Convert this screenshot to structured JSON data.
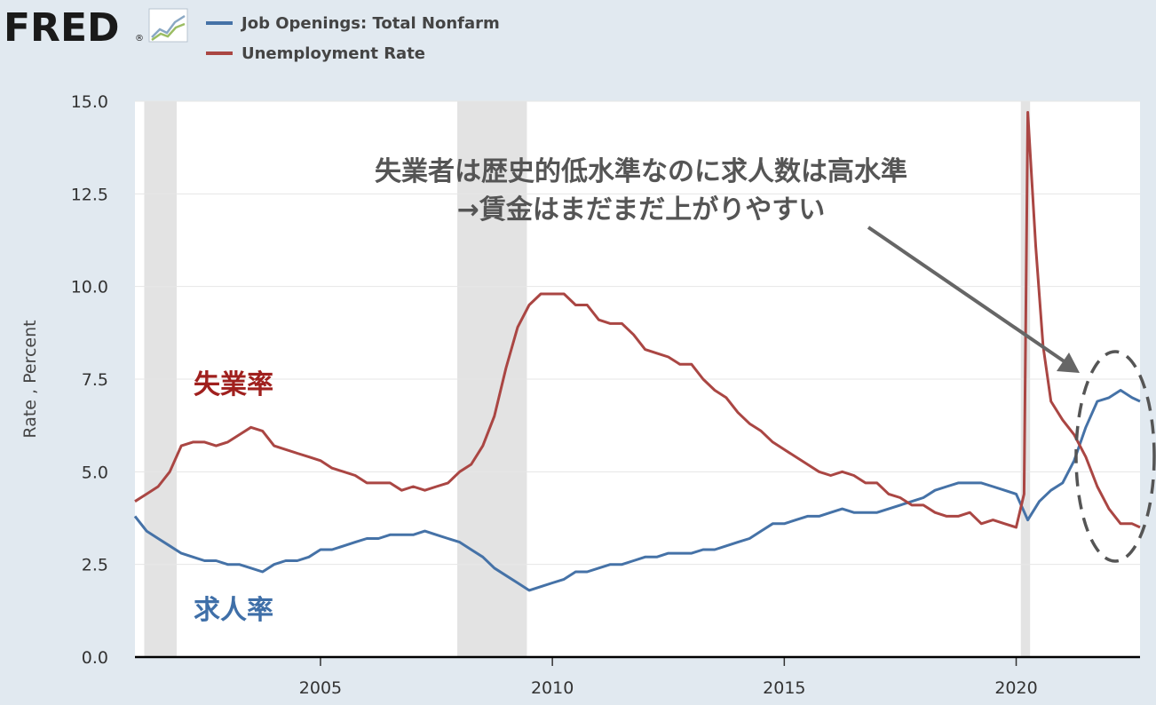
{
  "logo": {
    "text": "FRED",
    "reg": "®",
    "icon": "fred-graph-icon"
  },
  "chart_data": {
    "type": "line",
    "ylabel": "Rate , Percent",
    "ylim": [
      0,
      15
    ],
    "xlim": [
      2001.0,
      2022.67
    ],
    "yticks": [
      "0.0",
      "2.5",
      "5.0",
      "7.5",
      "10.0",
      "12.5",
      "15.0"
    ],
    "xticks": [
      "2005",
      "2010",
      "2015",
      "2020"
    ],
    "grid": true,
    "legend_position": "top-left",
    "recessions": [
      [
        2001.2,
        2001.9
      ],
      [
        2007.95,
        2009.45
      ],
      [
        2020.1,
        2020.3
      ]
    ],
    "series": [
      {
        "name": "Job Openings: Total Nonfarm",
        "color": "#4572a7",
        "points": [
          [
            2001.0,
            3.8
          ],
          [
            2001.25,
            3.4
          ],
          [
            2001.5,
            3.2
          ],
          [
            2001.75,
            3.0
          ],
          [
            2002.0,
            2.8
          ],
          [
            2002.25,
            2.7
          ],
          [
            2002.5,
            2.6
          ],
          [
            2002.75,
            2.6
          ],
          [
            2003.0,
            2.5
          ],
          [
            2003.25,
            2.5
          ],
          [
            2003.5,
            2.4
          ],
          [
            2003.75,
            2.3
          ],
          [
            2004.0,
            2.5
          ],
          [
            2004.25,
            2.6
          ],
          [
            2004.5,
            2.6
          ],
          [
            2004.75,
            2.7
          ],
          [
            2005.0,
            2.9
          ],
          [
            2005.25,
            2.9
          ],
          [
            2005.5,
            3.0
          ],
          [
            2005.75,
            3.1
          ],
          [
            2006.0,
            3.2
          ],
          [
            2006.25,
            3.2
          ],
          [
            2006.5,
            3.3
          ],
          [
            2006.75,
            3.3
          ],
          [
            2007.0,
            3.3
          ],
          [
            2007.25,
            3.4
          ],
          [
            2007.5,
            3.3
          ],
          [
            2007.75,
            3.2
          ],
          [
            2008.0,
            3.1
          ],
          [
            2008.25,
            2.9
          ],
          [
            2008.5,
            2.7
          ],
          [
            2008.75,
            2.4
          ],
          [
            2009.0,
            2.2
          ],
          [
            2009.25,
            2.0
          ],
          [
            2009.5,
            1.8
          ],
          [
            2009.75,
            1.9
          ],
          [
            2010.0,
            2.0
          ],
          [
            2010.25,
            2.1
          ],
          [
            2010.5,
            2.3
          ],
          [
            2010.75,
            2.3
          ],
          [
            2011.0,
            2.4
          ],
          [
            2011.25,
            2.5
          ],
          [
            2011.5,
            2.5
          ],
          [
            2011.75,
            2.6
          ],
          [
            2012.0,
            2.7
          ],
          [
            2012.25,
            2.7
          ],
          [
            2012.5,
            2.8
          ],
          [
            2012.75,
            2.8
          ],
          [
            2013.0,
            2.8
          ],
          [
            2013.25,
            2.9
          ],
          [
            2013.5,
            2.9
          ],
          [
            2013.75,
            3.0
          ],
          [
            2014.0,
            3.1
          ],
          [
            2014.25,
            3.2
          ],
          [
            2014.5,
            3.4
          ],
          [
            2014.75,
            3.6
          ],
          [
            2015.0,
            3.6
          ],
          [
            2015.25,
            3.7
          ],
          [
            2015.5,
            3.8
          ],
          [
            2015.75,
            3.8
          ],
          [
            2016.0,
            3.9
          ],
          [
            2016.25,
            4.0
          ],
          [
            2016.5,
            3.9
          ],
          [
            2016.75,
            3.9
          ],
          [
            2017.0,
            3.9
          ],
          [
            2017.25,
            4.0
          ],
          [
            2017.5,
            4.1
          ],
          [
            2017.75,
            4.2
          ],
          [
            2018.0,
            4.3
          ],
          [
            2018.25,
            4.5
          ],
          [
            2018.5,
            4.6
          ],
          [
            2018.75,
            4.7
          ],
          [
            2019.0,
            4.7
          ],
          [
            2019.25,
            4.7
          ],
          [
            2019.5,
            4.6
          ],
          [
            2019.75,
            4.5
          ],
          [
            2020.0,
            4.4
          ],
          [
            2020.25,
            3.7
          ],
          [
            2020.5,
            4.2
          ],
          [
            2020.75,
            4.5
          ],
          [
            2021.0,
            4.7
          ],
          [
            2021.25,
            5.3
          ],
          [
            2021.5,
            6.2
          ],
          [
            2021.75,
            6.9
          ],
          [
            2022.0,
            7.0
          ],
          [
            2022.25,
            7.2
          ],
          [
            2022.5,
            7.0
          ],
          [
            2022.67,
            6.9
          ]
        ]
      },
      {
        "name": "Unemployment Rate",
        "color": "#aa4643",
        "points": [
          [
            2001.0,
            4.2
          ],
          [
            2001.25,
            4.4
          ],
          [
            2001.5,
            4.6
          ],
          [
            2001.75,
            5.0
          ],
          [
            2002.0,
            5.7
          ],
          [
            2002.25,
            5.8
          ],
          [
            2002.5,
            5.8
          ],
          [
            2002.75,
            5.7
          ],
          [
            2003.0,
            5.8
          ],
          [
            2003.25,
            6.0
          ],
          [
            2003.5,
            6.2
          ],
          [
            2003.75,
            6.1
          ],
          [
            2004.0,
            5.7
          ],
          [
            2004.25,
            5.6
          ],
          [
            2004.5,
            5.5
          ],
          [
            2004.75,
            5.4
          ],
          [
            2005.0,
            5.3
          ],
          [
            2005.25,
            5.1
          ],
          [
            2005.5,
            5.0
          ],
          [
            2005.75,
            4.9
          ],
          [
            2006.0,
            4.7
          ],
          [
            2006.25,
            4.7
          ],
          [
            2006.5,
            4.7
          ],
          [
            2006.75,
            4.5
          ],
          [
            2007.0,
            4.6
          ],
          [
            2007.25,
            4.5
          ],
          [
            2007.5,
            4.6
          ],
          [
            2007.75,
            4.7
          ],
          [
            2008.0,
            5.0
          ],
          [
            2008.25,
            5.2
          ],
          [
            2008.5,
            5.7
          ],
          [
            2008.75,
            6.5
          ],
          [
            2009.0,
            7.8
          ],
          [
            2009.25,
            8.9
          ],
          [
            2009.5,
            9.5
          ],
          [
            2009.75,
            9.8
          ],
          [
            2010.0,
            9.8
          ],
          [
            2010.25,
            9.8
          ],
          [
            2010.5,
            9.5
          ],
          [
            2010.75,
            9.5
          ],
          [
            2011.0,
            9.1
          ],
          [
            2011.25,
            9.0
          ],
          [
            2011.5,
            9.0
          ],
          [
            2011.75,
            8.7
          ],
          [
            2012.0,
            8.3
          ],
          [
            2012.25,
            8.2
          ],
          [
            2012.5,
            8.1
          ],
          [
            2012.75,
            7.9
          ],
          [
            2013.0,
            7.9
          ],
          [
            2013.25,
            7.5
          ],
          [
            2013.5,
            7.2
          ],
          [
            2013.75,
            7.0
          ],
          [
            2014.0,
            6.6
          ],
          [
            2014.25,
            6.3
          ],
          [
            2014.5,
            6.1
          ],
          [
            2014.75,
            5.8
          ],
          [
            2015.0,
            5.6
          ],
          [
            2015.25,
            5.4
          ],
          [
            2015.5,
            5.2
          ],
          [
            2015.75,
            5.0
          ],
          [
            2016.0,
            4.9
          ],
          [
            2016.25,
            5.0
          ],
          [
            2016.5,
            4.9
          ],
          [
            2016.75,
            4.7
          ],
          [
            2017.0,
            4.7
          ],
          [
            2017.25,
            4.4
          ],
          [
            2017.5,
            4.3
          ],
          [
            2017.75,
            4.1
          ],
          [
            2018.0,
            4.1
          ],
          [
            2018.25,
            3.9
          ],
          [
            2018.5,
            3.8
          ],
          [
            2018.75,
            3.8
          ],
          [
            2019.0,
            3.9
          ],
          [
            2019.25,
            3.6
          ],
          [
            2019.5,
            3.7
          ],
          [
            2019.75,
            3.6
          ],
          [
            2020.0,
            3.5
          ],
          [
            2020.17,
            4.4
          ],
          [
            2020.25,
            14.7
          ],
          [
            2020.42,
            11.1
          ],
          [
            2020.58,
            8.4
          ],
          [
            2020.75,
            6.9
          ],
          [
            2021.0,
            6.4
          ],
          [
            2021.25,
            6.0
          ],
          [
            2021.5,
            5.4
          ],
          [
            2021.75,
            4.6
          ],
          [
            2022.0,
            4.0
          ],
          [
            2022.25,
            3.6
          ],
          [
            2022.5,
            3.6
          ],
          [
            2022.67,
            3.5
          ]
        ]
      }
    ],
    "annotations": {
      "unemp_label": "失業率",
      "jobs_label": "求人率",
      "note_line1": "失業者は歴史的低水準なのに求人数は高水準",
      "note_line2": "→賃金はまだまだ上がりやすい"
    }
  }
}
